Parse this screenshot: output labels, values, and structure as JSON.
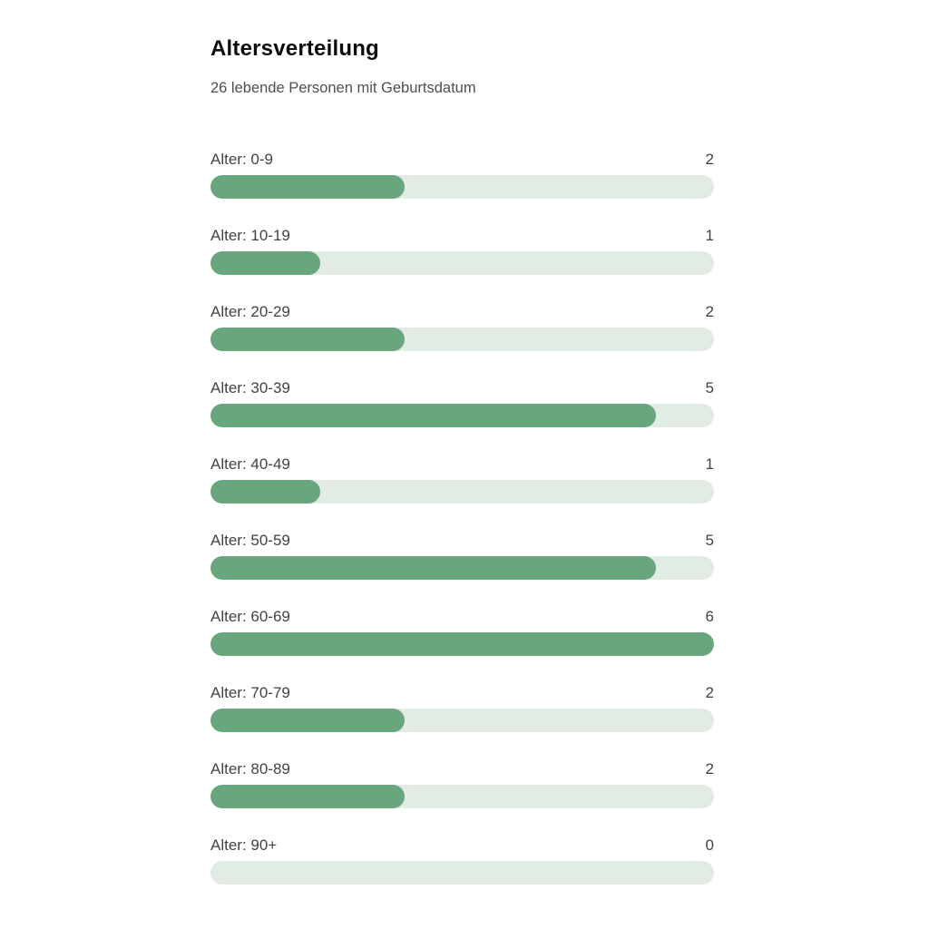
{
  "chart_data": {
    "type": "bar",
    "orientation": "horizontal",
    "title": "Altersverteilung",
    "subtitle": "26 lebende Personen mit Geburtsdatum",
    "categories": [
      "Alter: 0-9",
      "Alter: 10-19",
      "Alter: 20-29",
      "Alter: 30-39",
      "Alter: 40-49",
      "Alter: 50-59",
      "Alter: 60-69",
      "Alter: 70-79",
      "Alter: 80-89",
      "Alter: 90+"
    ],
    "values": [
      2,
      1,
      2,
      5,
      1,
      5,
      6,
      2,
      2,
      0
    ],
    "total_persons": 26,
    "max_value": 6,
    "value_labels_shown": true,
    "grid": false,
    "legend": false,
    "colors": {
      "bar_fill": "#68a67d",
      "bar_track": "#e2ece4",
      "title_text": "#0c0c0c",
      "subtitle_text": "#4f4f4f",
      "label_text": "#424242"
    }
  }
}
